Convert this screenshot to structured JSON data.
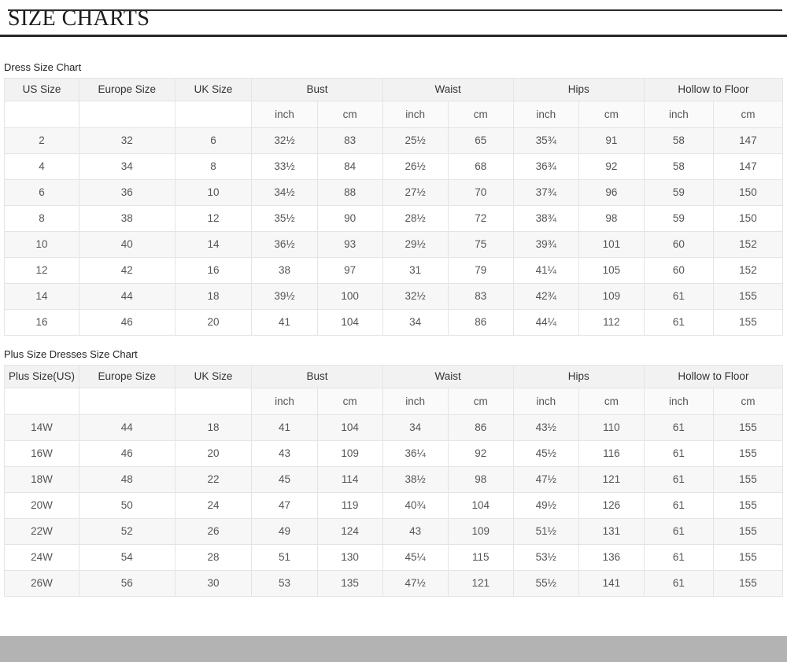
{
  "page": {
    "title": "SIZE CHARTS"
  },
  "chart_data": [
    {
      "type": "table",
      "title": "Dress Size Chart",
      "group_columns": [
        {
          "label": "US Size",
          "span": 1
        },
        {
          "label": "Europe Size",
          "span": 1
        },
        {
          "label": "UK Size",
          "span": 1
        },
        {
          "label": "Bust",
          "span": 2
        },
        {
          "label": "Waist",
          "span": 2
        },
        {
          "label": "Hips",
          "span": 2
        },
        {
          "label": "Hollow to Floor",
          "span": 2
        }
      ],
      "unit_row": [
        "",
        "",
        "",
        "inch",
        "cm",
        "inch",
        "cm",
        "inch",
        "cm",
        "inch",
        "cm"
      ],
      "rows": [
        [
          "2",
          "32",
          "6",
          "32½",
          "83",
          "25½",
          "65",
          "35¾",
          "91",
          "58",
          "147"
        ],
        [
          "4",
          "34",
          "8",
          "33½",
          "84",
          "26½",
          "68",
          "36¾",
          "92",
          "58",
          "147"
        ],
        [
          "6",
          "36",
          "10",
          "34½",
          "88",
          "27½",
          "70",
          "37¾",
          "96",
          "59",
          "150"
        ],
        [
          "8",
          "38",
          "12",
          "35½",
          "90",
          "28½",
          "72",
          "38¾",
          "98",
          "59",
          "150"
        ],
        [
          "10",
          "40",
          "14",
          "36½",
          "93",
          "29½",
          "75",
          "39¾",
          "101",
          "60",
          "152"
        ],
        [
          "12",
          "42",
          "16",
          "38",
          "97",
          "31",
          "79",
          "41¼",
          "105",
          "60",
          "152"
        ],
        [
          "14",
          "44",
          "18",
          "39½",
          "100",
          "32½",
          "83",
          "42¾",
          "109",
          "61",
          "155"
        ],
        [
          "16",
          "46",
          "20",
          "41",
          "104",
          "34",
          "86",
          "44¼",
          "112",
          "61",
          "155"
        ]
      ]
    },
    {
      "type": "table",
      "title": "Plus Size Dresses Size Chart",
      "group_columns": [
        {
          "label": "Plus Size(US)",
          "span": 1
        },
        {
          "label": "Europe Size",
          "span": 1
        },
        {
          "label": "UK Size",
          "span": 1
        },
        {
          "label": "Bust",
          "span": 2
        },
        {
          "label": "Waist",
          "span": 2
        },
        {
          "label": "Hips",
          "span": 2
        },
        {
          "label": "Hollow to Floor",
          "span": 2
        }
      ],
      "unit_row": [
        "",
        "",
        "",
        "inch",
        "cm",
        "inch",
        "cm",
        "inch",
        "cm",
        "inch",
        "cm"
      ],
      "rows": [
        [
          "14W",
          "44",
          "18",
          "41",
          "104",
          "34",
          "86",
          "43½",
          "110",
          "61",
          "155"
        ],
        [
          "16W",
          "46",
          "20",
          "43",
          "109",
          "36¼",
          "92",
          "45½",
          "116",
          "61",
          "155"
        ],
        [
          "18W",
          "48",
          "22",
          "45",
          "114",
          "38½",
          "98",
          "47½",
          "121",
          "61",
          "155"
        ],
        [
          "20W",
          "50",
          "24",
          "47",
          "119",
          "40¾",
          "104",
          "49½",
          "126",
          "61",
          "155"
        ],
        [
          "22W",
          "52",
          "26",
          "49",
          "124",
          "43",
          "109",
          "51½",
          "131",
          "61",
          "155"
        ],
        [
          "24W",
          "54",
          "28",
          "51",
          "130",
          "45¼",
          "115",
          "53½",
          "136",
          "61",
          "155"
        ],
        [
          "26W",
          "56",
          "30",
          "53",
          "135",
          "47½",
          "121",
          "55½",
          "141",
          "61",
          "155"
        ]
      ]
    }
  ],
  "layout_colors": {
    "rule": "#262626",
    "header_bg": "#f2f2f2",
    "zebra_bg": "#f7f7f7",
    "border": "#e4e4e4",
    "bottom_band": "#b3b3b3"
  }
}
